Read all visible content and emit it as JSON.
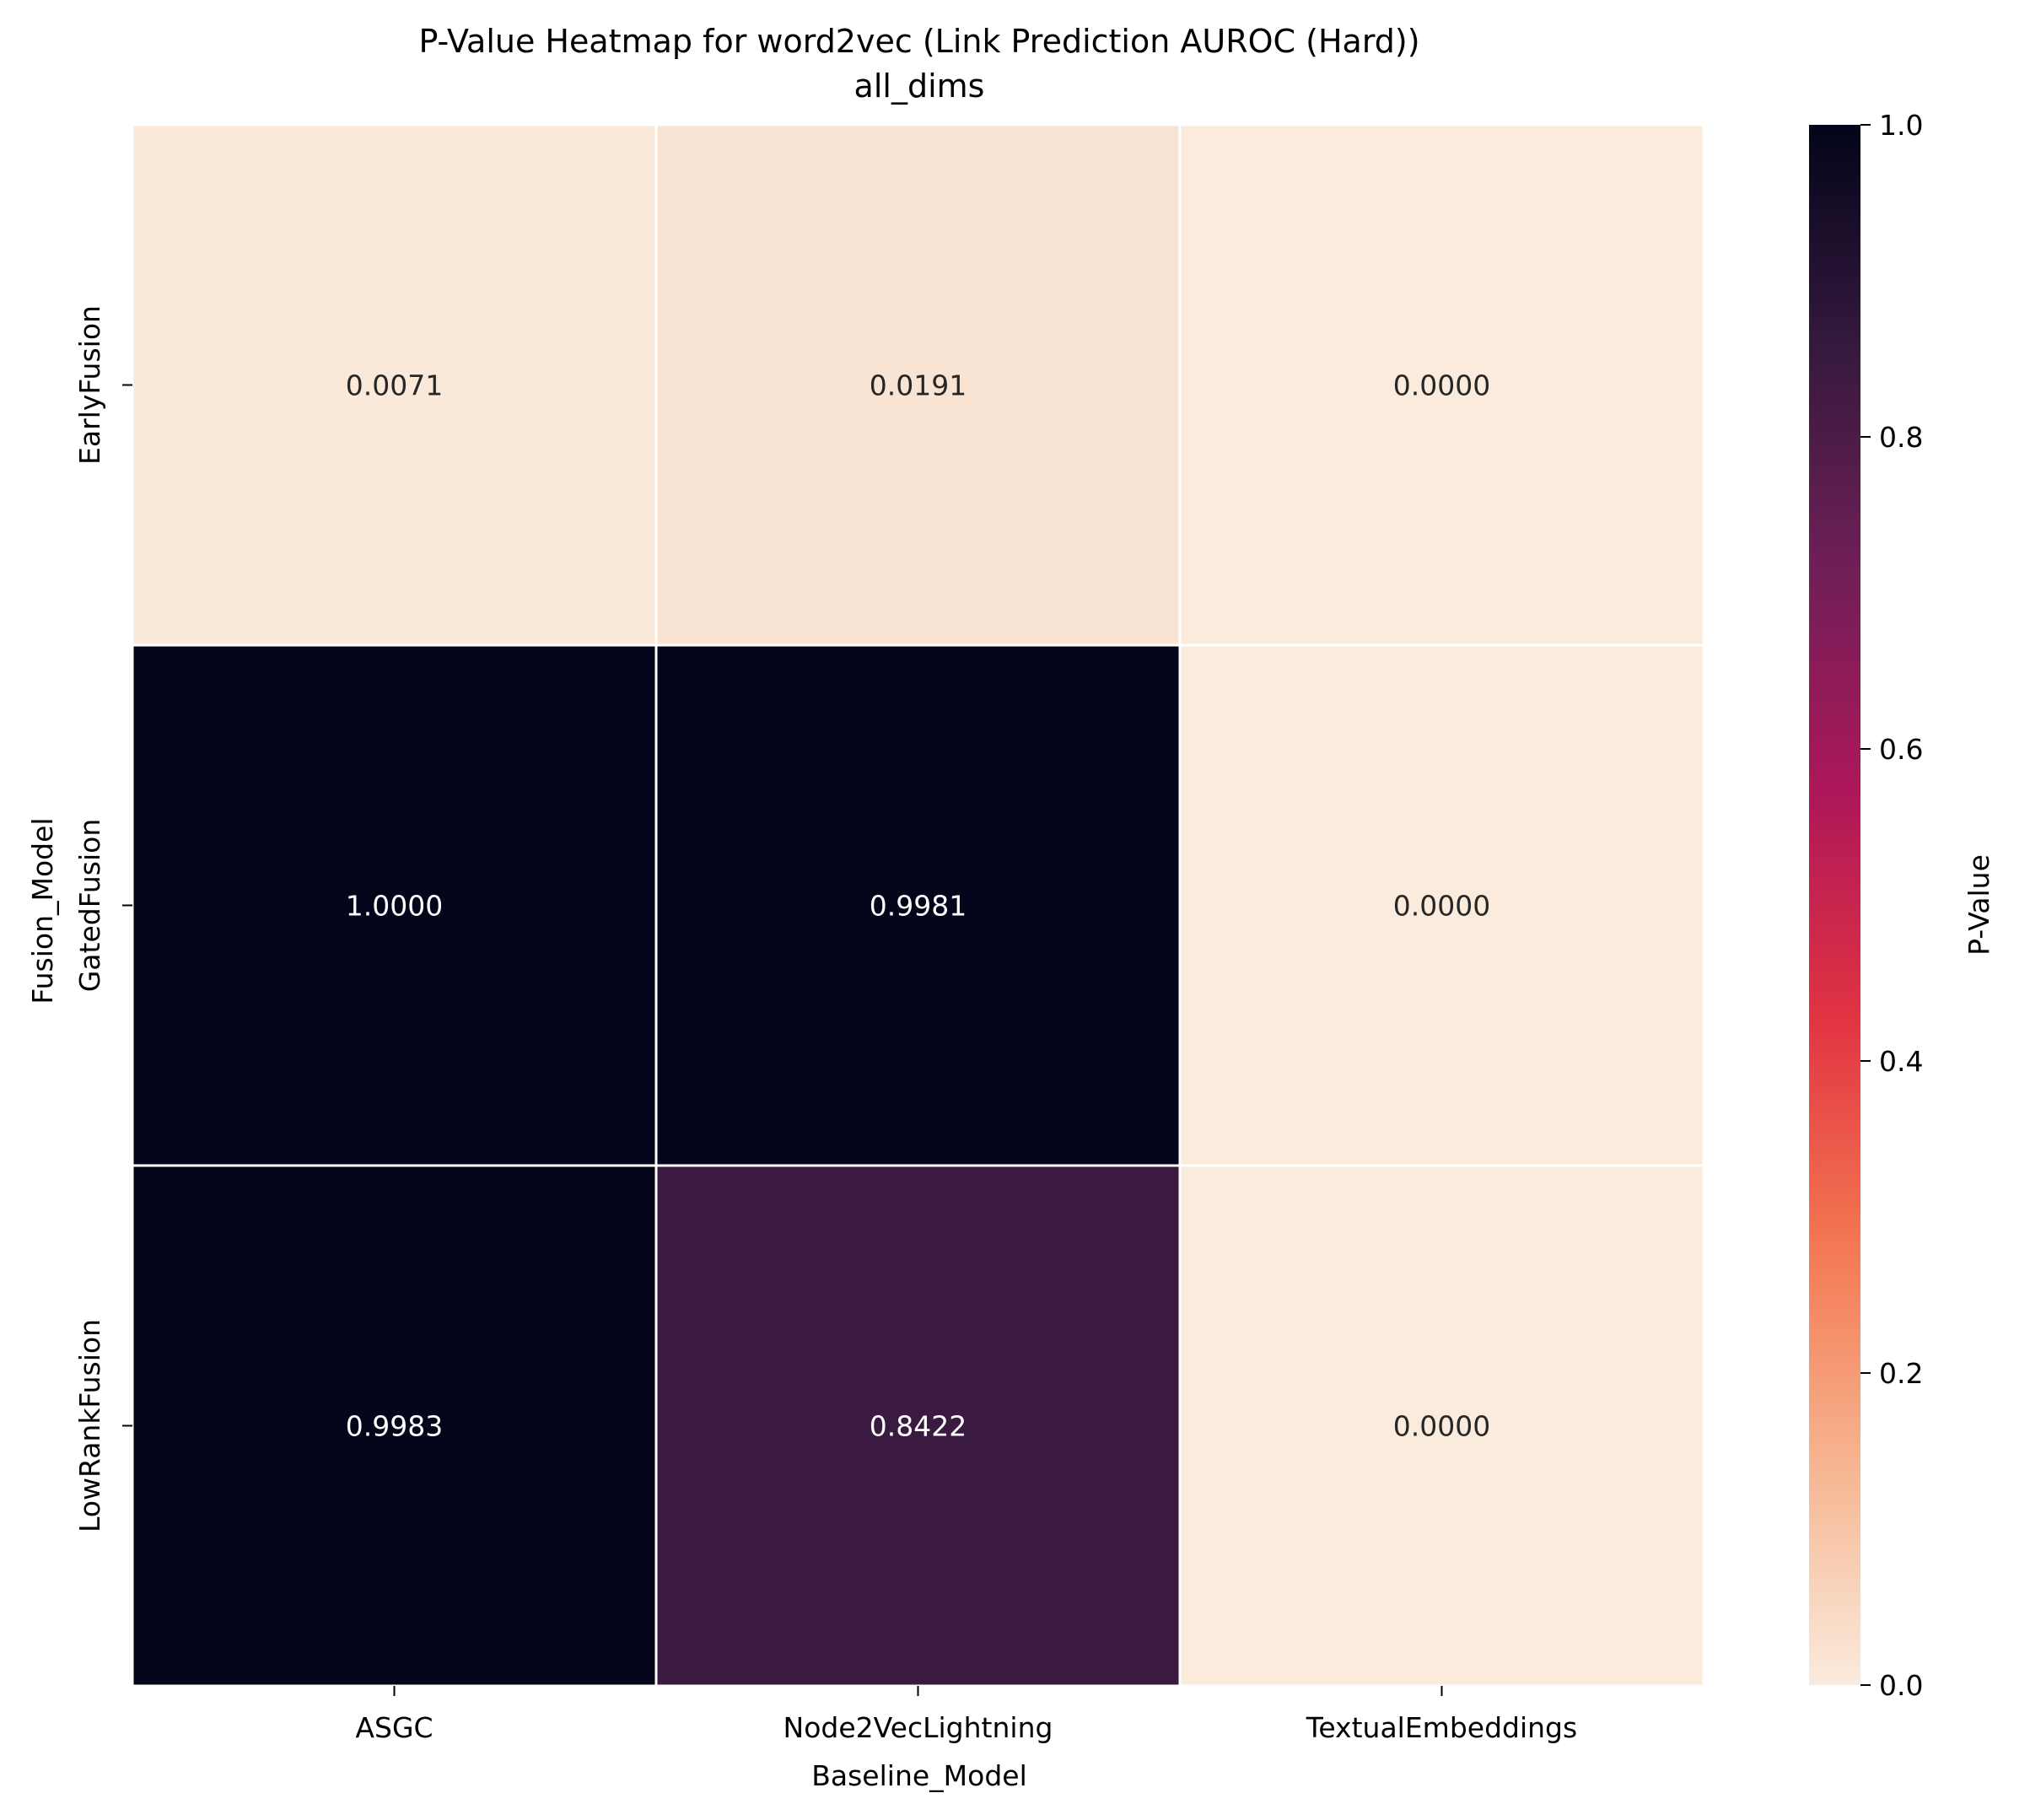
{
  "chart_data": {
    "type": "heatmap",
    "title": "P-Value Heatmap for word2vec (Link Prediction AUROC (Hard))",
    "subtitle": "all_dims",
    "xlabel": "Baseline_Model",
    "ylabel": "Fusion_Model",
    "x_categories": [
      "ASGC",
      "Node2VecLightning",
      "TextualEmbeddings"
    ],
    "y_categories": [
      "EarlyFusion",
      "GatedFusion",
      "LowRankFusion"
    ],
    "values": [
      [
        0.0071,
        0.0191,
        0.0
      ],
      [
        1.0,
        0.9981,
        0.0
      ],
      [
        0.9983,
        0.8422,
        0.0
      ]
    ],
    "value_labels": [
      [
        "0.0071",
        "0.0191",
        "0.0000"
      ],
      [
        "1.0000",
        "0.9981",
        "0.0000"
      ],
      [
        "0.9983",
        "0.8422",
        "0.0000"
      ]
    ],
    "colorbar": {
      "label": "P-Value",
      "range": [
        0.0,
        1.0
      ],
      "ticks": [
        "0.0",
        "0.2",
        "0.4",
        "0.6",
        "0.8",
        "1.0"
      ],
      "colormap": "rocket_r",
      "colormap_stops": [
        "#faebdd",
        "#f6b48f",
        "#f37651",
        "#e13342",
        "#ad1759",
        "#701f57",
        "#35193e",
        "#03051a"
      ]
    },
    "grid": false,
    "legend": "colorbar-right"
  }
}
